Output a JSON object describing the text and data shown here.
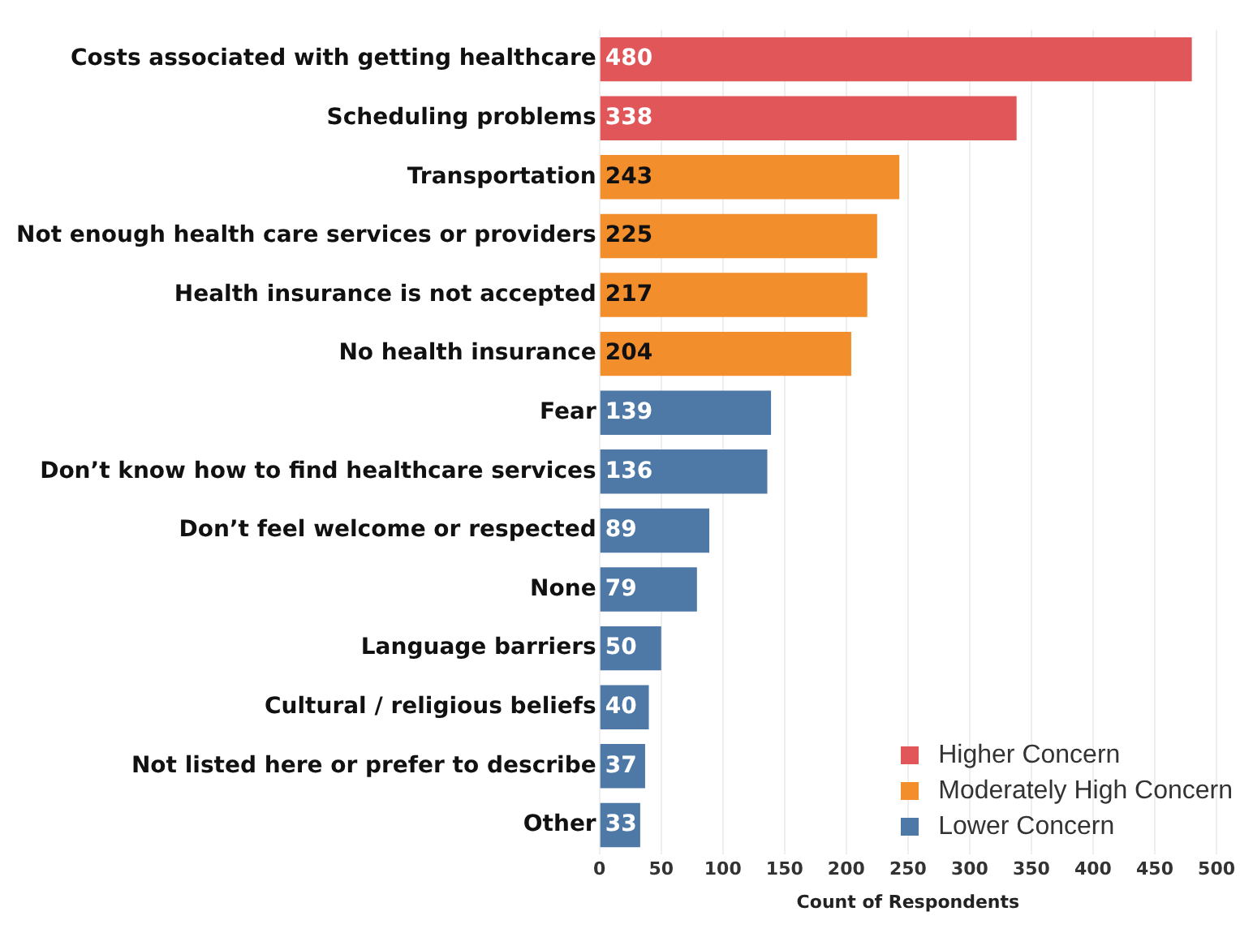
{
  "chart_data": {
    "type": "bar",
    "orientation": "horizontal",
    "xlabel": "Count of Respondents",
    "categories": [
      "Costs associated with getting healthcare",
      "Scheduling problems",
      "Transportation",
      "Not enough health care services or providers",
      "Health insurance is not accepted",
      "No health insurance",
      "Fear",
      "Don’t know how to find healthcare services",
      "Don’t feel welcome or respected",
      "None",
      "Language barriers",
      "Cultural / religious beliefs",
      "Not listed here or prefer to describe",
      "Other"
    ],
    "series": [
      {
        "name": "Higher Concern",
        "color": "#e15759",
        "values": [
          480,
          338,
          null,
          null,
          null,
          null,
          null,
          null,
          null,
          null,
          null,
          null,
          null,
          null
        ]
      },
      {
        "name": "Moderately High Concern",
        "color": "#f28e2b",
        "values": [
          null,
          null,
          243,
          225,
          217,
          204,
          null,
          null,
          null,
          null,
          null,
          null,
          null,
          null
        ]
      },
      {
        "name": "Lower Concern",
        "color": "#4e79a7",
        "values": [
          null,
          null,
          null,
          null,
          null,
          null,
          139,
          136,
          89,
          79,
          50,
          40,
          37,
          33
        ]
      }
    ],
    "xlim": [
      0,
      500
    ],
    "xticks": [
      0,
      50,
      100,
      150,
      200,
      250,
      300,
      350,
      400,
      450,
      500
    ],
    "grid": "x",
    "legend": "bottom right",
    "data_labels": true
  }
}
